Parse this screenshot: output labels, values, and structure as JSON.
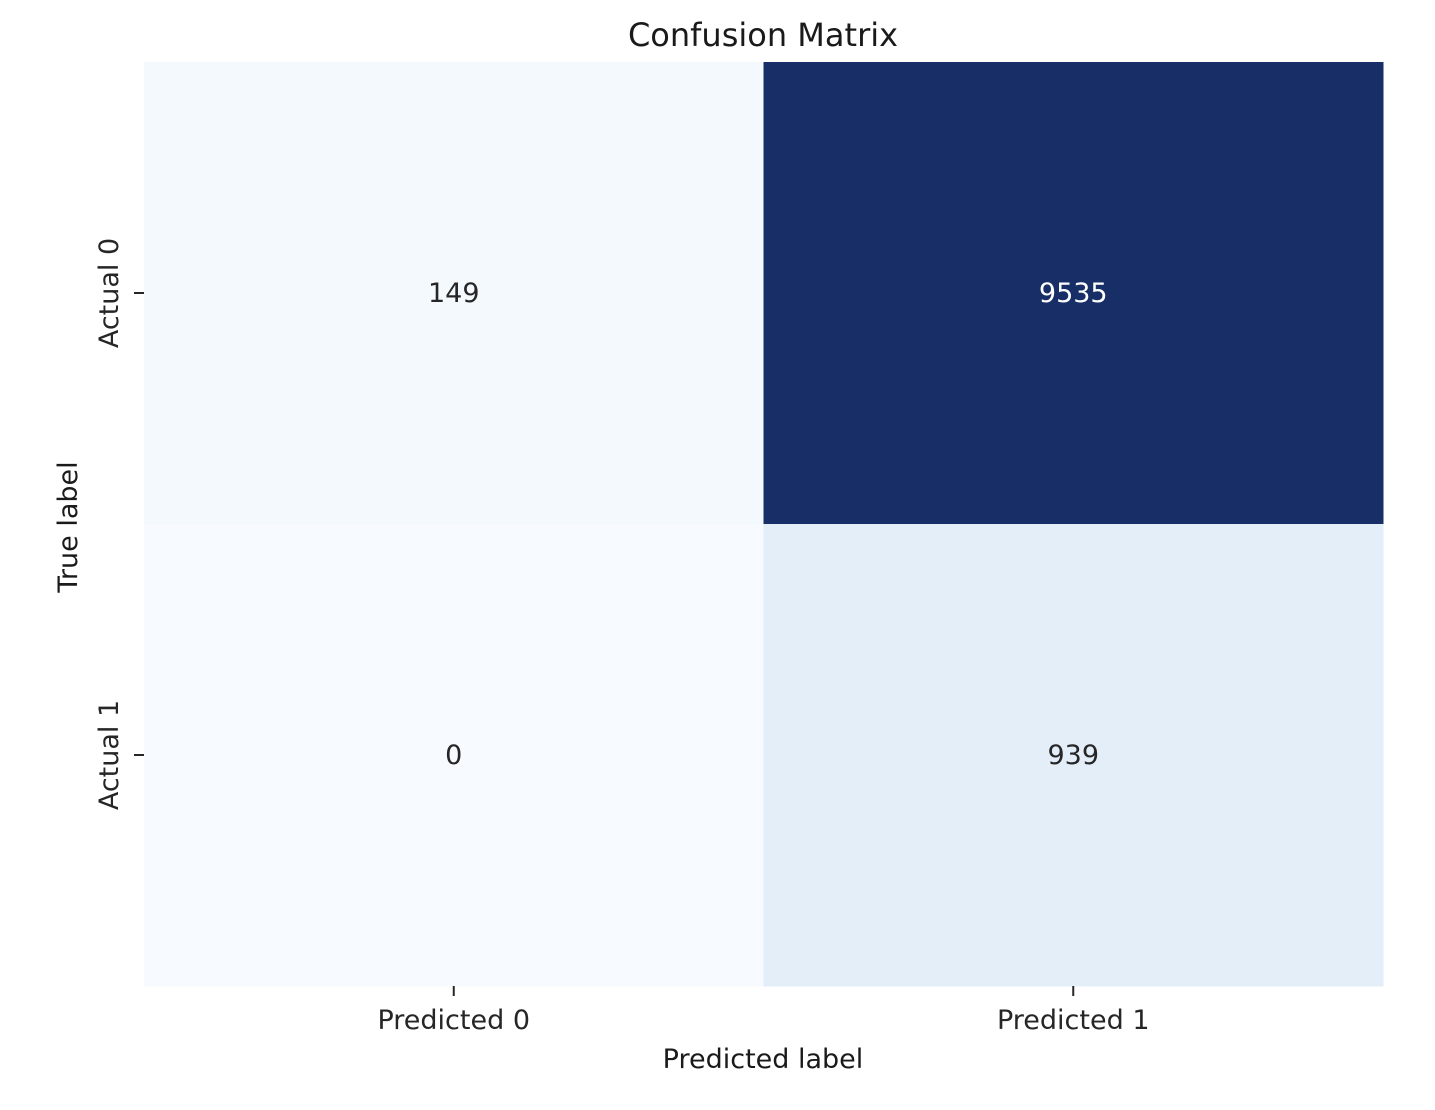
{
  "chart_data": {
    "type": "heatmap",
    "title": "Confusion Matrix",
    "xlabel": "Predicted label",
    "ylabel": "True label",
    "x_categories": [
      "Predicted 0",
      "Predicted 1"
    ],
    "y_categories": [
      "Actual 0",
      "Actual 1"
    ],
    "values": [
      [
        149,
        9535
      ],
      [
        0,
        939
      ]
    ],
    "colormap": "Blues",
    "colorbar": false,
    "grid": false,
    "colors": {
      "low": "#f7fbff",
      "high": "#172f66",
      "text_dark": "#262626",
      "text_light": "#ffffff"
    }
  }
}
